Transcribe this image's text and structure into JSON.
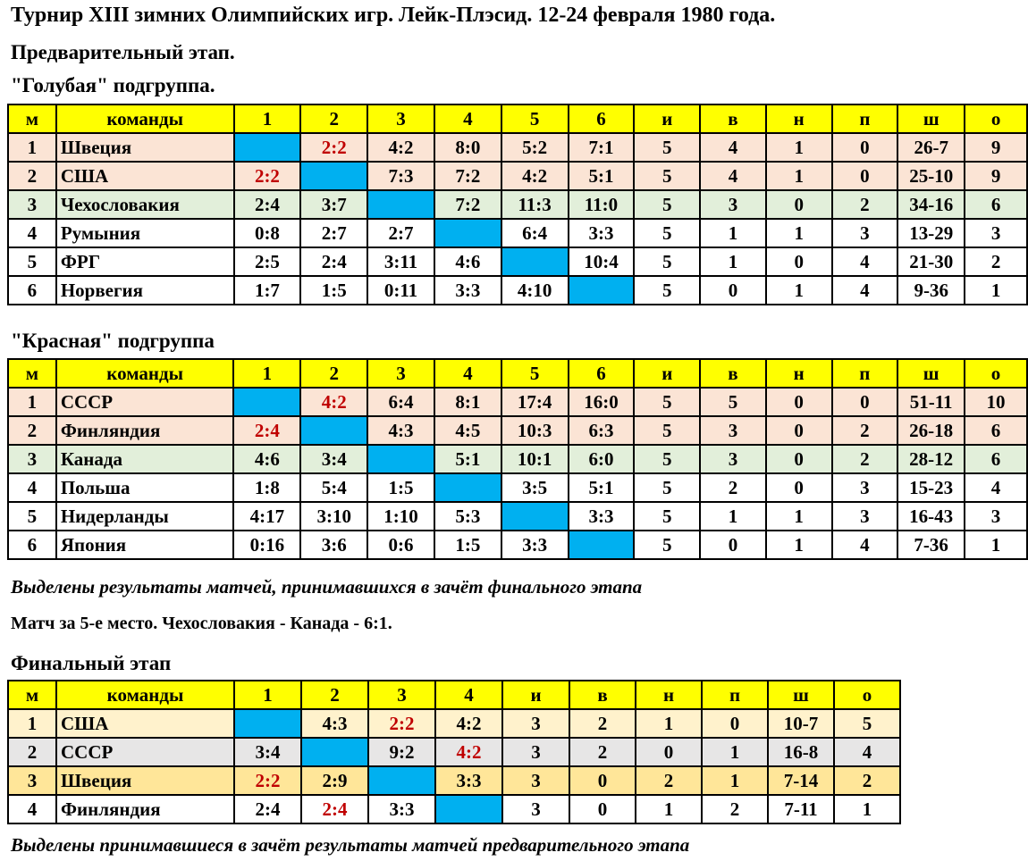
{
  "title": "Турнир XIII зимних Олимпийских игр. Лейк-Плэсид. 12-24 февраля 1980 года.",
  "prelim_title": "Предварительный этап.",
  "blue": {
    "title": "\"Голубая\" подгруппа.",
    "header": [
      "м",
      "команды",
      "1",
      "2",
      "3",
      "4",
      "5",
      "6",
      "и",
      "в",
      "н",
      "п",
      "ш",
      "о"
    ],
    "rows": [
      {
        "cells": [
          "1",
          "Швеция",
          "",
          "2:2",
          "4:2",
          "8:0",
          "5:2",
          "7:1",
          "5",
          "4",
          "1",
          "0",
          "26-7",
          "9"
        ],
        "bg": "#fbe4d5",
        "red": [
          3
        ]
      },
      {
        "cells": [
          "2",
          "США",
          "2:2",
          "",
          "7:3",
          "7:2",
          "4:2",
          "5:1",
          "5",
          "4",
          "1",
          "0",
          "25-10",
          "9"
        ],
        "bg": "#fbe4d5",
        "red": [
          2
        ]
      },
      {
        "cells": [
          "3",
          "Чехословакия",
          "2:4",
          "3:7",
          "",
          "7:2",
          "11:3",
          "11:0",
          "5",
          "3",
          "0",
          "2",
          "34-16",
          "6"
        ],
        "bg": "#e2efda",
        "red": []
      },
      {
        "cells": [
          "4",
          "Румыния",
          "0:8",
          "2:7",
          "2:7",
          "",
          "6:4",
          "3:3",
          "5",
          "1",
          "1",
          "3",
          "13-29",
          "3"
        ],
        "bg": "#ffffff",
        "red": []
      },
      {
        "cells": [
          "5",
          "ФРГ",
          "2:5",
          "2:4",
          "3:11",
          "4:6",
          "",
          "10:4",
          "5",
          "1",
          "0",
          "4",
          "21-30",
          "2"
        ],
        "bg": "#ffffff",
        "red": []
      },
      {
        "cells": [
          "6",
          "Норвегия",
          "1:7",
          "1:5",
          "0:11",
          "3:3",
          "4:10",
          "",
          "5",
          "0",
          "1",
          "4",
          "9-36",
          "1"
        ],
        "bg": "#ffffff",
        "red": []
      }
    ]
  },
  "red_group": {
    "title": "\"Красная\" подгруппа",
    "header": [
      "м",
      "команды",
      "1",
      "2",
      "3",
      "4",
      "5",
      "6",
      "и",
      "в",
      "н",
      "п",
      "ш",
      "о"
    ],
    "rows": [
      {
        "cells": [
          "1",
          "СССР",
          "",
          "4:2",
          "6:4",
          "8:1",
          "17:4",
          "16:0",
          "5",
          "5",
          "0",
          "0",
          "51-11",
          "10"
        ],
        "bg": "#fbe4d5",
        "red": [
          3
        ]
      },
      {
        "cells": [
          "2",
          "Финляндия",
          "2:4",
          "",
          "4:3",
          "4:5",
          "10:3",
          "6:3",
          "5",
          "3",
          "0",
          "2",
          "26-18",
          "6"
        ],
        "bg": "#fbe4d5",
        "red": [
          2
        ]
      },
      {
        "cells": [
          "3",
          "Канада",
          "4:6",
          "3:4",
          "",
          "5:1",
          "10:1",
          "6:0",
          "5",
          "3",
          "0",
          "2",
          "28-12",
          "6"
        ],
        "bg": "#e2efda",
        "red": []
      },
      {
        "cells": [
          "4",
          "Польша",
          "1:8",
          "5:4",
          "1:5",
          "",
          "3:5",
          "5:1",
          "5",
          "2",
          "0",
          "3",
          "15-23",
          "4"
        ],
        "bg": "#ffffff",
        "red": []
      },
      {
        "cells": [
          "5",
          "Нидерланды",
          "4:17",
          "3:10",
          "1:10",
          "5:3",
          "",
          "3:3",
          "5",
          "1",
          "1",
          "3",
          "16-43",
          "3"
        ],
        "bg": "#ffffff",
        "red": []
      },
      {
        "cells": [
          "6",
          "Япония",
          "0:16",
          "3:6",
          "0:6",
          "1:5",
          "3:3",
          "",
          "5",
          "0",
          "1",
          "4",
          "7-36",
          "1"
        ],
        "bg": "#ffffff",
        "red": []
      }
    ]
  },
  "prelim_note": "Выделены результаты матчей, принимавшихся в зачёт финального этапа",
  "fifth_place": "Матч за 5-е место. Чехословакия - Канада - 6:1.",
  "final": {
    "title": "Финальный этап",
    "header": [
      "м",
      "команды",
      "1",
      "2",
      "3",
      "4",
      "и",
      "в",
      "н",
      "п",
      "ш",
      "о"
    ],
    "rows": [
      {
        "cells": [
          "1",
          "США",
          "",
          "4:3",
          "2:2",
          "4:2",
          "3",
          "2",
          "1",
          "0",
          "10-7",
          "5"
        ],
        "bg": "#fff2cc",
        "red": [
          4
        ]
      },
      {
        "cells": [
          "2",
          "СССР",
          "3:4",
          "",
          "9:2",
          "4:2",
          "3",
          "2",
          "0",
          "1",
          "16-8",
          "4"
        ],
        "bg": "#e7e6e6",
        "red": [
          5
        ]
      },
      {
        "cells": [
          "3",
          "Швеция",
          "2:2",
          "2:9",
          "",
          "3:3",
          "3",
          "0",
          "2",
          "1",
          "7-14",
          "2"
        ],
        "bg": "#ffe699",
        "red": [
          2
        ]
      },
      {
        "cells": [
          "4",
          "Финляндия",
          "2:4",
          "2:4",
          "3:3",
          "",
          "3",
          "0",
          "1",
          "2",
          "7-11",
          "1"
        ],
        "bg": "#ffffff",
        "red": [
          3
        ]
      }
    ]
  },
  "final_note": "Выделены принимавшиеся в зачёт результаты матчей предварительного этапа"
}
